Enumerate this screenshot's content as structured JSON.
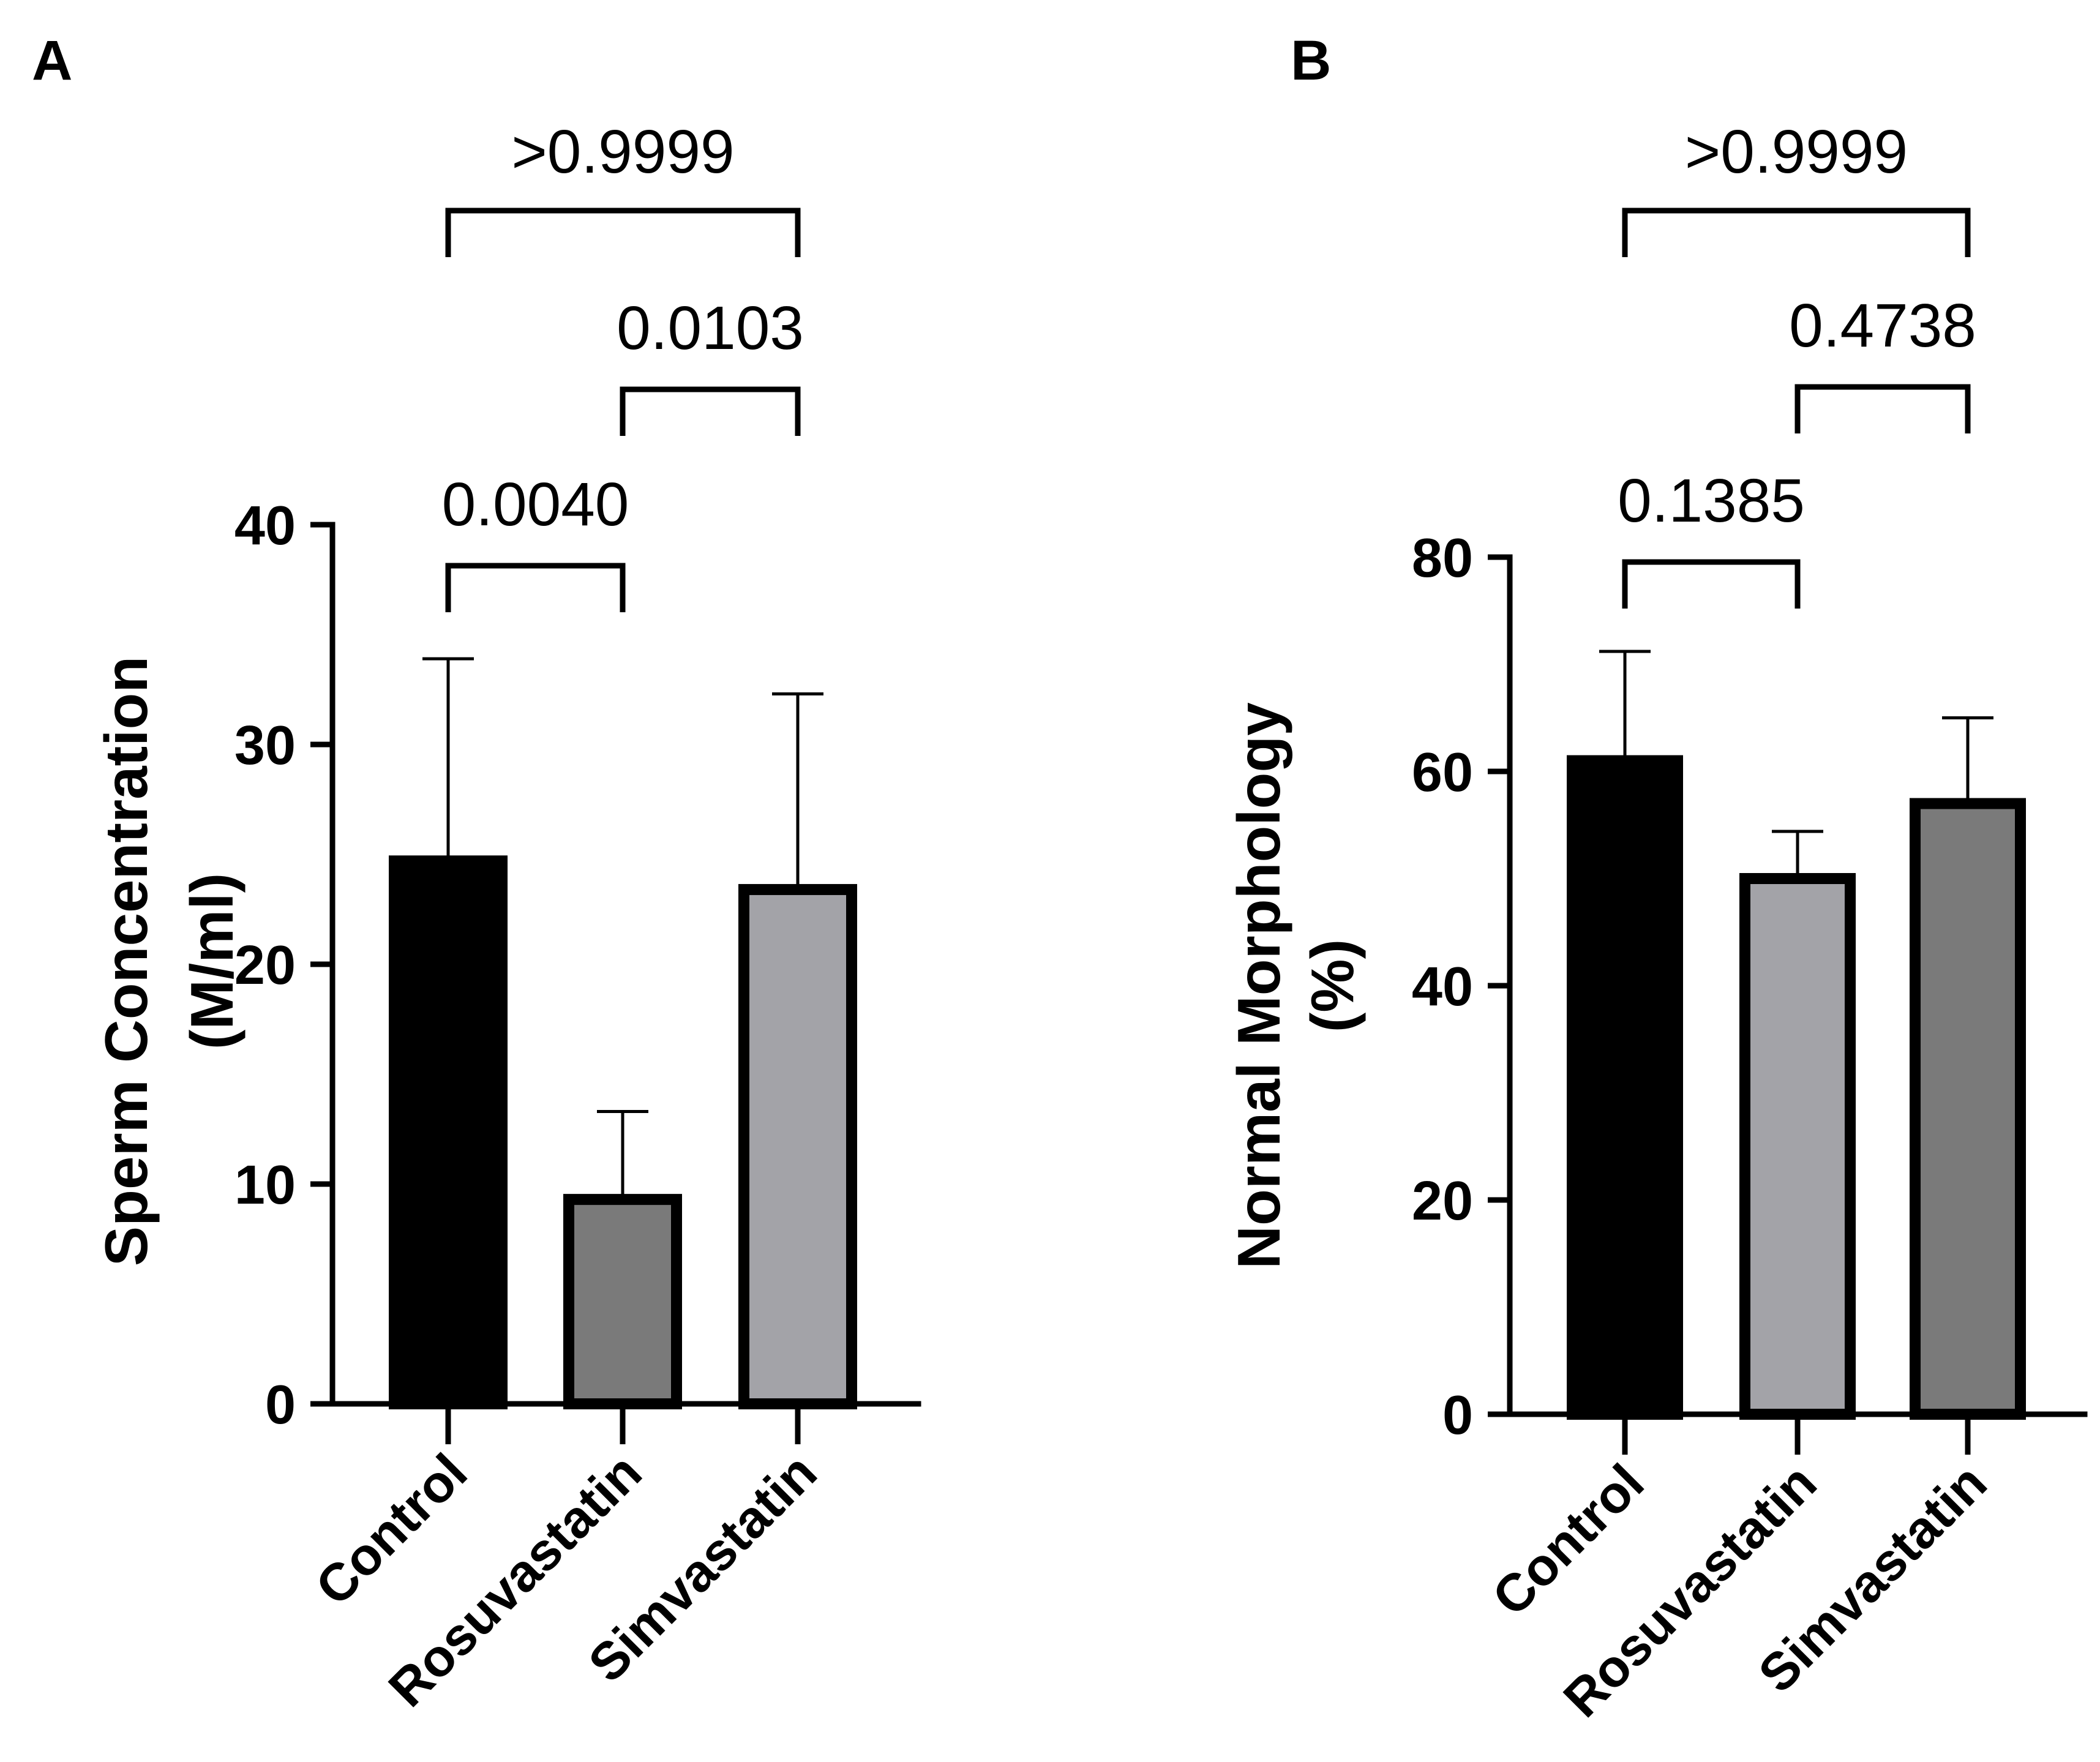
{
  "chart_data": [
    {
      "type": "bar",
      "panel_label": "A",
      "ylabel_lines": [
        "Sperm Concentration",
        "(M/ml)"
      ],
      "categories": [
        "Control",
        "Rosuvastatin",
        "Simvastatin"
      ],
      "values": [
        24.7,
        9.3,
        23.4
      ],
      "errors": [
        9.2,
        4.0,
        8.9
      ],
      "colors": [
        "#000000",
        "#7a7a7a",
        "#a3a3a8"
      ],
      "ylim": [
        0,
        40
      ],
      "yticks": [
        0,
        10,
        20,
        30,
        40
      ],
      "comparisons": [
        {
          "from": 0,
          "to": 1,
          "label": "0.0040"
        },
        {
          "from": 1,
          "to": 2,
          "label": "0.0103"
        },
        {
          "from": 0,
          "to": 2,
          "label": ">0.9999"
        }
      ]
    },
    {
      "type": "bar",
      "panel_label": "B",
      "ylabel_lines": [
        "Normal Morphology",
        "(%)"
      ],
      "categories": [
        "Control",
        "Rosuvastatin",
        "Simvastatin"
      ],
      "values": [
        61.0,
        50.0,
        57.0
      ],
      "errors": [
        10.2,
        4.4,
        8.0
      ],
      "colors": [
        "#000000",
        "#a3a3a8",
        "#7a7a7a"
      ],
      "ylim": [
        0,
        80
      ],
      "yticks": [
        0,
        20,
        40,
        60,
        80
      ],
      "comparisons": [
        {
          "from": 0,
          "to": 1,
          "label": "0.1385"
        },
        {
          "from": 1,
          "to": 2,
          "label": "0.4738"
        },
        {
          "from": 0,
          "to": 2,
          "label": ">0.9999"
        }
      ]
    }
  ]
}
